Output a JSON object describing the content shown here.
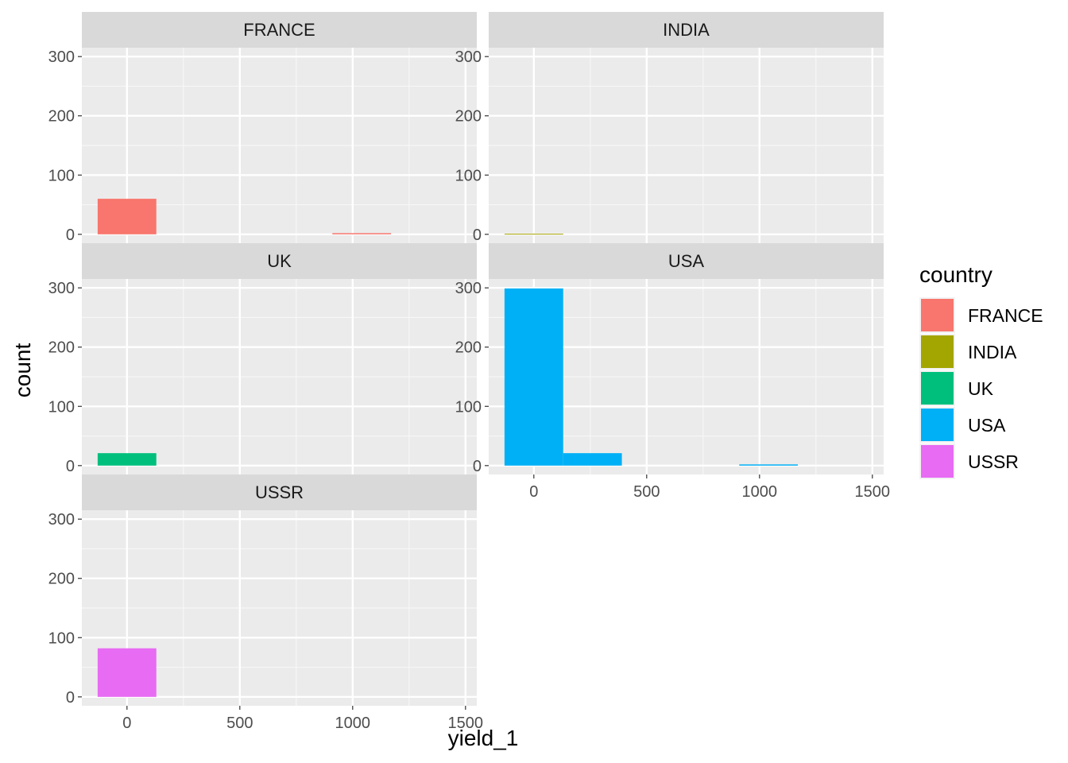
{
  "chart_data": {
    "type": "bar",
    "subtype": "faceted-histogram",
    "title": "",
    "xlabel": "yield_1",
    "ylabel": "count",
    "xlim": [
      -200,
      1550
    ],
    "ylim": [
      -15,
      315
    ],
    "x_ticks": [
      0,
      500,
      1000,
      1500
    ],
    "x_minor_ticks": [
      250,
      750,
      1250
    ],
    "y_ticks": [
      0,
      100,
      200,
      300
    ],
    "y_minor_ticks": [
      50,
      150,
      250
    ],
    "bin_width": 260,
    "grid": true,
    "legend": {
      "title": "country",
      "position": "right",
      "entries": [
        "FRANCE",
        "INDIA",
        "UK",
        "USA",
        "USSR"
      ]
    },
    "facets": [
      {
        "name": "FRANCE",
        "color": "#F8766D",
        "bins": [
          {
            "x": 0,
            "count": 60
          },
          {
            "x": 1040,
            "count": 2
          }
        ]
      },
      {
        "name": "INDIA",
        "color": "#A3A500",
        "bins": [
          {
            "x": 0,
            "count": 1
          }
        ]
      },
      {
        "name": "UK",
        "color": "#00BF7D",
        "bins": [
          {
            "x": 0,
            "count": 21
          }
        ]
      },
      {
        "name": "USA",
        "color": "#00B0F6",
        "bins": [
          {
            "x": 0,
            "count": 299
          },
          {
            "x": 260,
            "count": 21
          },
          {
            "x": 1040,
            "count": 2
          }
        ]
      },
      {
        "name": "USSR",
        "color": "#E76BF3",
        "bins": [
          {
            "x": 0,
            "count": 82
          }
        ]
      }
    ]
  }
}
